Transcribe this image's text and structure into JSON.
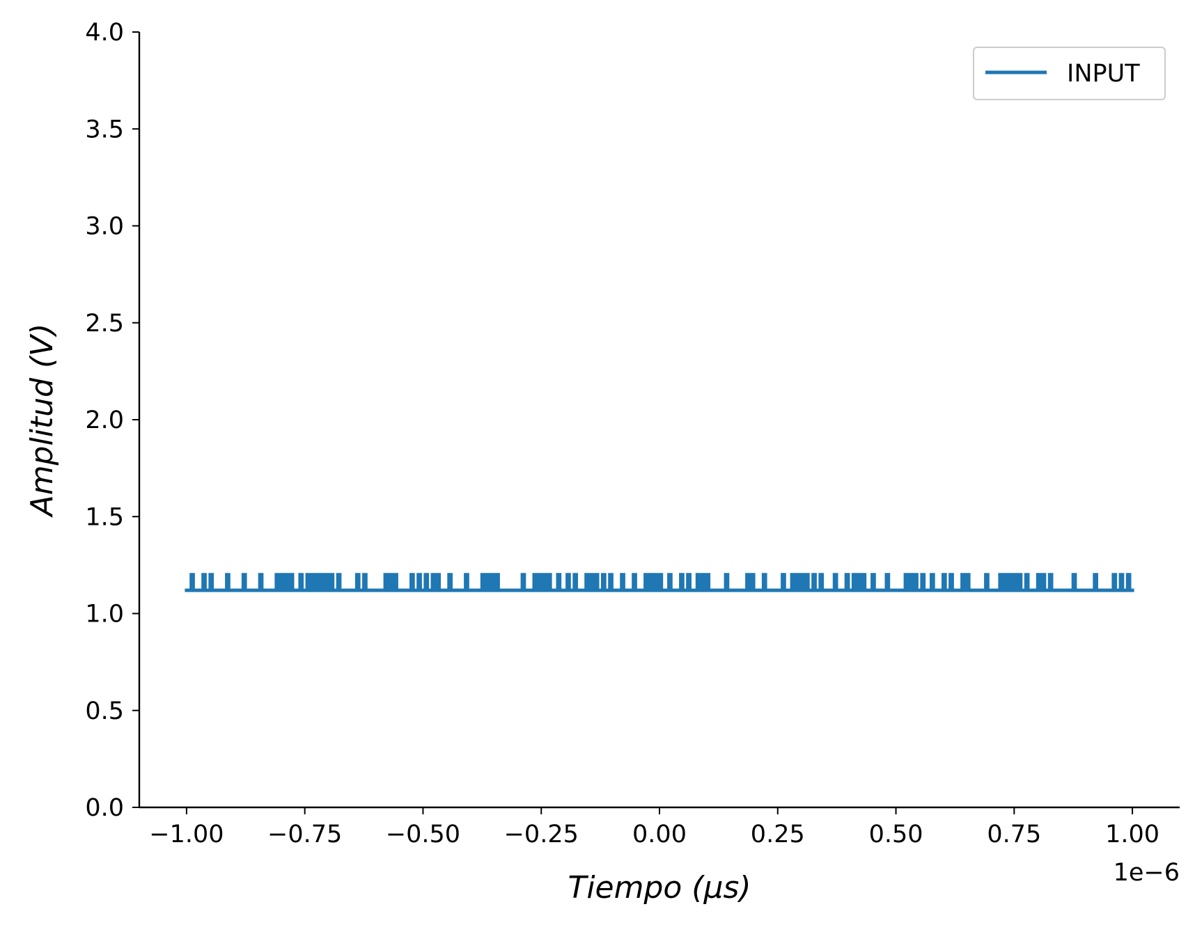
{
  "chart_data": {
    "type": "line",
    "xlabel": "Tiempo (μs)",
    "ylabel": "Amplitud (V)",
    "x_offset_label": "1e−6",
    "xlim": [
      -1.1e-06,
      1.1e-06
    ],
    "ylim": [
      0,
      4
    ],
    "x_ticks": [
      -1e-06,
      -7.5e-07,
      -5e-07,
      -2.5e-07,
      0,
      2.5e-07,
      5e-07,
      7.5e-07,
      1e-06
    ],
    "x_tick_labels": [
      "−1.00",
      "−0.75",
      "−0.50",
      "−0.25",
      "0.00",
      "0.25",
      "0.50",
      "0.75",
      "1.00"
    ],
    "y_ticks": [
      0,
      0.5,
      1.0,
      1.5,
      2.0,
      2.5,
      3.0,
      3.5,
      4.0
    ],
    "y_tick_labels": [
      "0.0",
      "0.5",
      "1.0",
      "1.5",
      "2.0",
      "2.5",
      "3.0",
      "3.5",
      "4.0"
    ],
    "grid": false,
    "legend_position": "top-right",
    "series": [
      {
        "name": "INPUT",
        "color": "#1f77b4",
        "signal": {
          "x_start": -1e-06,
          "x_end": 1e-06,
          "low_level": 1.12,
          "high_level": 1.2,
          "pulse_times": [
            -9.9e-07,
            -9.65e-07,
            -9.5e-07,
            -9.15e-07,
            -8.8e-07,
            -8.45e-07,
            -8.1e-07,
            -8e-07,
            -7.9e-07,
            -7.8e-07,
            -7.6e-07,
            -7.45e-07,
            -7.35e-07,
            -7.25e-07,
            -7.15e-07,
            -7.05e-07,
            -6.95e-07,
            -6.8e-07,
            -6.4e-07,
            -6.25e-07,
            -5.8e-07,
            -5.7e-07,
            -5.6e-07,
            -5.25e-07,
            -5.1e-07,
            -4.95e-07,
            -4.8e-07,
            -4.7e-07,
            -4.45e-07,
            -4.1e-07,
            -3.75e-07,
            -3.65e-07,
            -3.55e-07,
            -3.45e-07,
            -2.9e-07,
            -2.65e-07,
            -2.55e-07,
            -2.45e-07,
            -2.35e-07,
            -2.15e-07,
            -1.95e-07,
            -1.8e-07,
            -1.55e-07,
            -1.45e-07,
            -1.35e-07,
            -1.2e-07,
            -1.05e-07,
            -8e-08,
            -5.5e-08,
            -3e-08,
            -2e-08,
            -1e-08,
            0.0,
            2e-08,
            4.5e-08,
            6e-08,
            8e-08,
            9e-08,
            1e-07,
            1.4e-07,
            1.85e-07,
            1.95e-07,
            2.2e-07,
            2.6e-07,
            2.8e-07,
            2.9e-07,
            3e-07,
            3.1e-07,
            3.25e-07,
            3.4e-07,
            3.7e-07,
            3.95e-07,
            4.1e-07,
            4.2e-07,
            4.3e-07,
            4.5e-07,
            4.8e-07,
            5.2e-07,
            5.3e-07,
            5.4e-07,
            5.55e-07,
            5.75e-07,
            6e-07,
            6.15e-07,
            6.4e-07,
            6.5e-07,
            6.9e-07,
            7.2e-07,
            7.3e-07,
            7.4e-07,
            7.5e-07,
            7.6e-07,
            7.75e-07,
            8e-07,
            8.1e-07,
            8.25e-07,
            8.75e-07,
            9.2e-07,
            9.6e-07,
            9.75e-07,
            9.9e-07
          ],
          "pulse_width": 4e-09
        }
      }
    ]
  }
}
